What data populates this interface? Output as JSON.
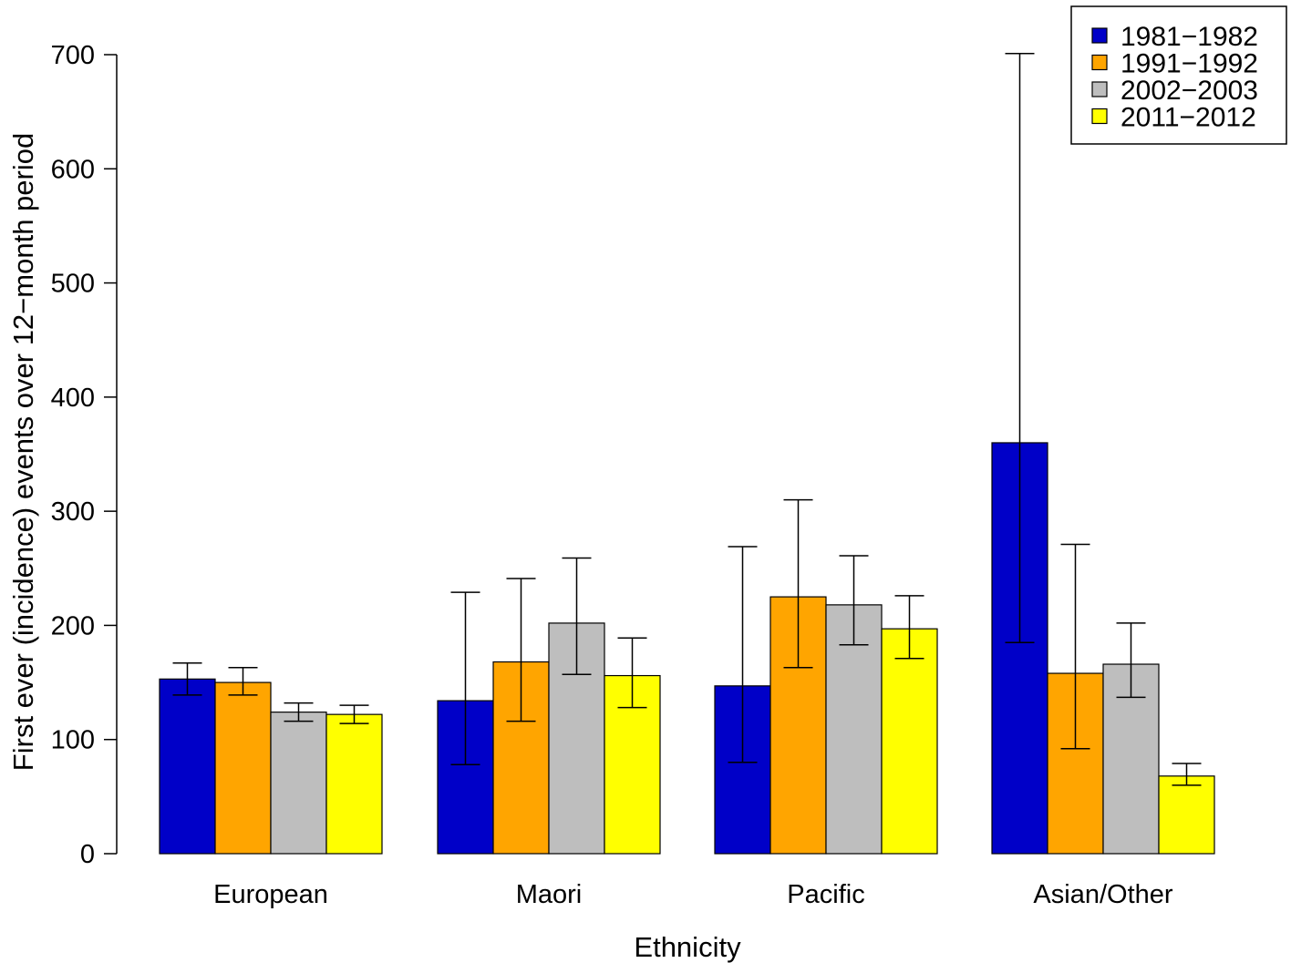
{
  "chart_data": {
    "type": "bar",
    "xlabel": "Ethnicity",
    "ylabel": "First ever (incidence) events over 12−month period",
    "ylim": [
      0,
      700
    ],
    "yticks": [
      0,
      100,
      200,
      300,
      400,
      500,
      600,
      700
    ],
    "grid": false,
    "legend_position": "top-right",
    "categories": [
      "European",
      "Maori",
      "Pacific",
      "Asian/Other"
    ],
    "series": [
      {
        "name": "1981−1982",
        "color": "#0000C8",
        "values": [
          153,
          134,
          147,
          360
        ],
        "error_low": [
          139,
          78,
          80,
          185
        ],
        "error_high": [
          167,
          229,
          269,
          701
        ]
      },
      {
        "name": "1991−1992",
        "color": "#FFA500",
        "values": [
          150,
          168,
          225,
          158
        ],
        "error_low": [
          139,
          116,
          163,
          92
        ],
        "error_high": [
          163,
          241,
          310,
          271
        ]
      },
      {
        "name": "2002−2003",
        "color": "#BEBEBE",
        "values": [
          124,
          202,
          218,
          166
        ],
        "error_low": [
          116,
          157,
          183,
          137
        ],
        "error_high": [
          132,
          259,
          261,
          202
        ]
      },
      {
        "name": "2011−2012",
        "color": "#FFFF00",
        "values": [
          122,
          156,
          197,
          68
        ],
        "error_low": [
          114,
          128,
          171,
          60
        ],
        "error_high": [
          130,
          189,
          226,
          79
        ]
      }
    ]
  }
}
